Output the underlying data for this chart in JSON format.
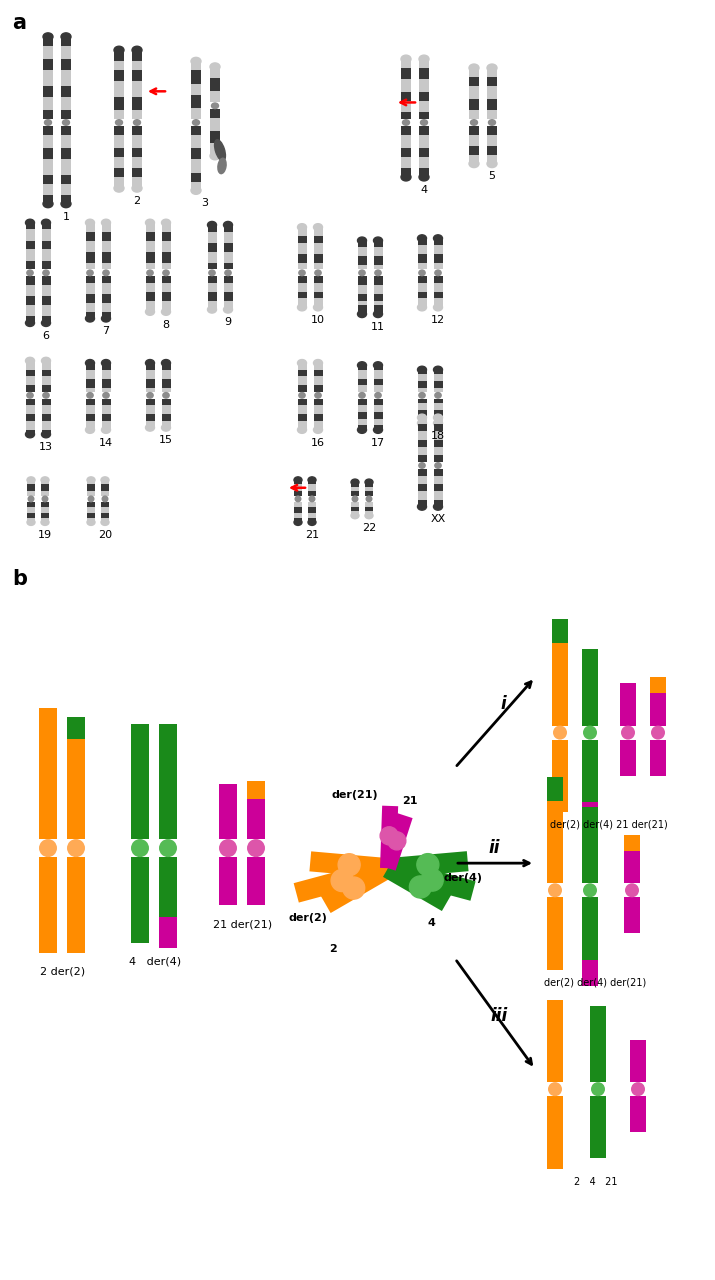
{
  "bg": "#ffffff",
  "colors": {
    "orange": "#FF8C00",
    "green": "#1A8A1A",
    "magenta": "#CC0099",
    "cen_orange": "#FFAA55",
    "cen_green": "#55BB55",
    "cen_magenta": "#DD55AA"
  },
  "panel_a_label": "a",
  "panel_b_label": "b",
  "row1_labels": [
    "1",
    "2",
    "3",
    "4",
    "5"
  ],
  "row2_labels": [
    "6",
    "7",
    "8",
    "9",
    "10",
    "11",
    "12"
  ],
  "row3_labels": [
    "13",
    "14",
    "15",
    "16",
    "17",
    "18"
  ],
  "row4_labels": [
    "19",
    "20",
    "21",
    "22",
    "XX"
  ],
  "left_labels": [
    "2 der(2)",
    "4   der(4)",
    "21 der(21)"
  ],
  "quad_labels": {
    "der21": "der(21)",
    "chr21": "21",
    "chr2": "2",
    "der2": "der(2)",
    "der4": "der(4)",
    "chr4": "4"
  },
  "outcome_i_label": "der(2) der(4) 21 der(21)",
  "outcome_ii_label": "der(2) der(4) der(21)",
  "outcome_iii_label": "2   4   21",
  "roman_i": "i",
  "roman_ii": "ii",
  "roman_iii": "iii"
}
